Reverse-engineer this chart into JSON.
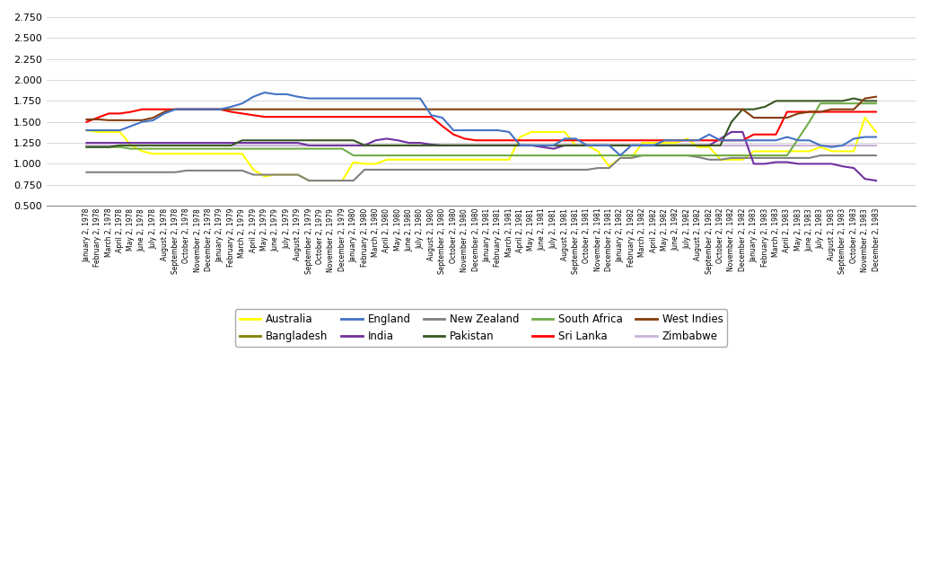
{
  "ylim": [
    0.5,
    2.75
  ],
  "yticks": [
    0.5,
    0.75,
    1.0,
    1.25,
    1.5,
    1.75,
    2.0,
    2.25,
    2.5,
    2.75
  ],
  "colors": {
    "Australia": "#FFFF00",
    "Bangladesh": "#808000",
    "England": "#4472C4",
    "India": "#7030A0",
    "New Zealand": "#808080",
    "Pakistan": "#375623",
    "South Africa": "#70AD47",
    "Sri Lanka": "#FF0000",
    "West Indies": "#843C0C",
    "Zimbabwe": "#C9B3D8"
  },
  "legend_order": [
    "Australia",
    "Bangladesh",
    "England",
    "India",
    "New Zealand",
    "Pakistan",
    "South Africa",
    "Sri Lanka",
    "West Indies",
    "Zimbabwe"
  ],
  "x_labels": [
    "January 2, 1978",
    "February 2, 1978",
    "March 2, 1978",
    "April 2, 1978",
    "May 2, 1978",
    "June 2, 1978",
    "July 2, 1978",
    "August 2, 1978",
    "September 2, 1978",
    "October 2, 1978",
    "November 2, 1978",
    "December 2, 1978",
    "January 2, 1979",
    "February 2, 1979",
    "March 2, 1979",
    "April 2, 1979",
    "May 2, 1979",
    "June 2, 1979",
    "July 2, 1979",
    "August 2, 1979",
    "September 2, 1979",
    "October 2, 1979",
    "November 2, 1979",
    "December 2, 1979",
    "January 2, 1980",
    "February 2, 1980",
    "March 2, 1980",
    "April 2, 1980",
    "May 2, 1980",
    "June 2, 1980",
    "July 2, 1980",
    "August 2, 1980",
    "September 2, 1980",
    "October 2, 1980",
    "November 2, 1980",
    "December 2, 1980",
    "January 2, 1981",
    "February 2, 1981",
    "March 2, 1981",
    "April 2, 1981",
    "May 2, 1981",
    "June 2, 1981",
    "July 2, 1981",
    "August 2, 1981",
    "September 2, 1981",
    "October 2, 1981",
    "November 2, 1981",
    "December 2, 1981",
    "January 2, 1982",
    "February 2, 1982",
    "March 2, 1982",
    "April 2, 1982",
    "May 2, 1982",
    "June 2, 1982",
    "July 2, 1982",
    "August 2, 1982",
    "September 2, 1982",
    "October 2, 1982",
    "November 2, 1982",
    "December 2, 1982",
    "January 2, 1983",
    "February 2, 1983",
    "March 2, 1983",
    "April 2, 1983",
    "May 2, 1983",
    "June 2, 1983",
    "July 2, 1983",
    "August 2, 1983",
    "September 2, 1983",
    "October 2, 1983",
    "November 2, 1983",
    "December 2, 1983"
  ],
  "series": {
    "Australia": [
      1.4,
      1.38,
      1.38,
      1.38,
      1.22,
      1.15,
      1.12,
      1.12,
      1.12,
      1.12,
      1.12,
      1.12,
      1.12,
      1.12,
      1.12,
      0.93,
      0.85,
      0.87,
      0.87,
      0.87,
      0.8,
      0.8,
      0.8,
      0.8,
      1.02,
      1.0,
      1.0,
      1.05,
      1.05,
      1.05,
      1.05,
      1.05,
      1.05,
      1.05,
      1.05,
      1.05,
      1.05,
      1.05,
      1.05,
      1.32,
      1.38,
      1.38,
      1.38,
      1.38,
      1.22,
      1.22,
      1.15,
      0.97,
      1.07,
      1.07,
      1.25,
      1.25,
      1.25,
      1.25,
      1.3,
      1.2,
      1.2,
      1.05,
      1.05,
      1.05,
      1.15,
      1.15,
      1.15,
      1.15,
      1.15,
      1.15,
      1.2,
      1.15,
      1.15,
      1.15,
      1.55,
      1.38
    ],
    "Bangladesh": [
      1.22,
      1.22,
      1.22,
      1.22,
      1.22,
      1.22,
      1.22,
      1.22,
      1.22,
      1.22,
      1.22,
      1.22,
      1.22,
      1.22,
      1.22,
      1.22,
      1.22,
      1.22,
      1.22,
      1.22,
      1.22,
      1.22,
      1.22,
      1.22,
      1.22,
      1.22,
      1.22,
      1.22,
      1.22,
      1.22,
      1.22,
      1.22,
      1.22,
      1.22,
      1.22,
      1.22,
      1.22,
      1.22,
      1.22,
      1.22,
      1.22,
      1.22,
      1.22,
      1.22,
      1.22,
      1.22,
      1.22,
      1.22,
      1.22,
      1.22,
      1.22,
      1.22,
      1.22,
      1.22,
      1.22,
      1.22,
      1.22,
      1.22,
      1.22,
      1.22,
      1.22,
      1.22,
      1.22,
      1.22,
      1.22,
      1.22,
      1.22,
      1.22,
      1.22,
      1.22,
      1.22,
      1.22
    ],
    "England": [
      1.4,
      1.4,
      1.4,
      1.4,
      1.45,
      1.5,
      1.52,
      1.6,
      1.65,
      1.65,
      1.65,
      1.65,
      1.65,
      1.68,
      1.72,
      1.8,
      1.85,
      1.83,
      1.83,
      1.8,
      1.78,
      1.78,
      1.78,
      1.78,
      1.78,
      1.78,
      1.78,
      1.78,
      1.78,
      1.78,
      1.78,
      1.58,
      1.55,
      1.4,
      1.4,
      1.4,
      1.4,
      1.4,
      1.38,
      1.22,
      1.22,
      1.22,
      1.22,
      1.3,
      1.3,
      1.22,
      1.22,
      1.22,
      1.1,
      1.22,
      1.22,
      1.22,
      1.28,
      1.28,
      1.28,
      1.28,
      1.35,
      1.28,
      1.28,
      1.28,
      1.28,
      1.28,
      1.28,
      1.32,
      1.28,
      1.28,
      1.22,
      1.2,
      1.22,
      1.3,
      1.32,
      1.32
    ],
    "India": [
      1.25,
      1.25,
      1.25,
      1.25,
      1.25,
      1.25,
      1.25,
      1.25,
      1.25,
      1.25,
      1.25,
      1.25,
      1.25,
      1.25,
      1.25,
      1.25,
      1.25,
      1.25,
      1.25,
      1.25,
      1.22,
      1.22,
      1.22,
      1.22,
      1.22,
      1.22,
      1.28,
      1.3,
      1.28,
      1.25,
      1.25,
      1.23,
      1.22,
      1.22,
      1.22,
      1.22,
      1.22,
      1.22,
      1.22,
      1.22,
      1.22,
      1.2,
      1.18,
      1.22,
      1.22,
      1.22,
      1.22,
      1.22,
      1.22,
      1.22,
      1.22,
      1.22,
      1.22,
      1.22,
      1.22,
      1.22,
      1.22,
      1.3,
      1.38,
      1.38,
      1.0,
      1.0,
      1.02,
      1.02,
      1.0,
      1.0,
      1.0,
      1.0,
      0.97,
      0.95,
      0.82,
      0.8
    ],
    "New Zealand": [
      0.9,
      0.9,
      0.9,
      0.9,
      0.9,
      0.9,
      0.9,
      0.9,
      0.9,
      0.92,
      0.92,
      0.92,
      0.92,
      0.92,
      0.92,
      0.87,
      0.87,
      0.87,
      0.87,
      0.87,
      0.8,
      0.8,
      0.8,
      0.8,
      0.8,
      0.93,
      0.93,
      0.93,
      0.93,
      0.93,
      0.93,
      0.93,
      0.93,
      0.93,
      0.93,
      0.93,
      0.93,
      0.93,
      0.93,
      0.93,
      0.93,
      0.93,
      0.93,
      0.93,
      0.93,
      0.93,
      0.95,
      0.95,
      1.07,
      1.07,
      1.1,
      1.1,
      1.1,
      1.1,
      1.1,
      1.08,
      1.05,
      1.05,
      1.07,
      1.07,
      1.07,
      1.07,
      1.07,
      1.07,
      1.07,
      1.07,
      1.1,
      1.1,
      1.1,
      1.1,
      1.1,
      1.1
    ],
    "Pakistan": [
      1.2,
      1.2,
      1.2,
      1.22,
      1.22,
      1.22,
      1.22,
      1.22,
      1.22,
      1.22,
      1.22,
      1.22,
      1.22,
      1.22,
      1.28,
      1.28,
      1.28,
      1.28,
      1.28,
      1.28,
      1.28,
      1.28,
      1.28,
      1.28,
      1.28,
      1.22,
      1.22,
      1.22,
      1.22,
      1.22,
      1.22,
      1.22,
      1.22,
      1.22,
      1.22,
      1.22,
      1.22,
      1.22,
      1.22,
      1.22,
      1.22,
      1.22,
      1.22,
      1.22,
      1.22,
      1.22,
      1.22,
      1.22,
      1.22,
      1.22,
      1.22,
      1.22,
      1.22,
      1.22,
      1.22,
      1.22,
      1.22,
      1.22,
      1.5,
      1.65,
      1.65,
      1.68,
      1.75,
      1.75,
      1.75,
      1.75,
      1.75,
      1.75,
      1.75,
      1.78,
      1.75,
      1.75
    ],
    "South Africa": [
      1.2,
      1.2,
      1.2,
      1.2,
      1.18,
      1.18,
      1.18,
      1.18,
      1.18,
      1.18,
      1.18,
      1.18,
      1.18,
      1.18,
      1.18,
      1.18,
      1.18,
      1.18,
      1.18,
      1.18,
      1.18,
      1.18,
      1.18,
      1.18,
      1.1,
      1.1,
      1.1,
      1.1,
      1.1,
      1.1,
      1.1,
      1.1,
      1.1,
      1.1,
      1.1,
      1.1,
      1.1,
      1.1,
      1.1,
      1.1,
      1.1,
      1.1,
      1.1,
      1.1,
      1.1,
      1.1,
      1.1,
      1.1,
      1.1,
      1.1,
      1.1,
      1.1,
      1.1,
      1.1,
      1.1,
      1.1,
      1.1,
      1.1,
      1.1,
      1.1,
      1.1,
      1.1,
      1.1,
      1.1,
      1.3,
      1.5,
      1.72,
      1.72,
      1.72,
      1.72,
      1.72,
      1.72
    ],
    "Sri Lanka": [
      1.5,
      1.55,
      1.6,
      1.6,
      1.62,
      1.65,
      1.65,
      1.65,
      1.65,
      1.65,
      1.65,
      1.65,
      1.65,
      1.62,
      1.6,
      1.58,
      1.56,
      1.56,
      1.56,
      1.56,
      1.56,
      1.56,
      1.56,
      1.56,
      1.56,
      1.56,
      1.56,
      1.56,
      1.56,
      1.56,
      1.56,
      1.56,
      1.45,
      1.35,
      1.3,
      1.28,
      1.28,
      1.28,
      1.28,
      1.28,
      1.28,
      1.28,
      1.28,
      1.28,
      1.28,
      1.28,
      1.28,
      1.28,
      1.28,
      1.28,
      1.28,
      1.28,
      1.28,
      1.28,
      1.28,
      1.28,
      1.28,
      1.28,
      1.28,
      1.28,
      1.35,
      1.35,
      1.35,
      1.62,
      1.62,
      1.62,
      1.62,
      1.62,
      1.62,
      1.62,
      1.62,
      1.62
    ],
    "West Indies": [
      1.53,
      1.53,
      1.52,
      1.52,
      1.52,
      1.52,
      1.55,
      1.62,
      1.65,
      1.65,
      1.65,
      1.65,
      1.65,
      1.65,
      1.65,
      1.65,
      1.65,
      1.65,
      1.65,
      1.65,
      1.65,
      1.65,
      1.65,
      1.65,
      1.65,
      1.65,
      1.65,
      1.65,
      1.65,
      1.65,
      1.65,
      1.65,
      1.65,
      1.65,
      1.65,
      1.65,
      1.65,
      1.65,
      1.65,
      1.65,
      1.65,
      1.65,
      1.65,
      1.65,
      1.65,
      1.65,
      1.65,
      1.65,
      1.65,
      1.65,
      1.65,
      1.65,
      1.65,
      1.65,
      1.65,
      1.65,
      1.65,
      1.65,
      1.65,
      1.65,
      1.55,
      1.55,
      1.55,
      1.55,
      1.6,
      1.62,
      1.62,
      1.65,
      1.65,
      1.65,
      1.78,
      1.8
    ],
    "Zimbabwe": [
      1.22,
      1.22,
      1.22,
      1.22,
      1.22,
      1.22,
      1.22,
      1.22,
      1.22,
      1.22,
      1.22,
      1.22,
      1.22,
      1.22,
      1.22,
      1.22,
      1.22,
      1.22,
      1.22,
      1.22,
      1.22,
      1.22,
      1.22,
      1.22,
      1.22,
      1.22,
      1.22,
      1.22,
      1.22,
      1.22,
      1.22,
      1.22,
      1.22,
      1.22,
      1.22,
      1.22,
      1.22,
      1.22,
      1.22,
      1.22,
      1.22,
      1.22,
      1.22,
      1.22,
      1.22,
      1.22,
      1.22,
      1.22,
      1.22,
      1.22,
      1.22,
      1.22,
      1.22,
      1.22,
      1.22,
      1.22,
      1.22,
      1.22,
      1.22,
      1.22,
      1.22,
      1.22,
      1.22,
      1.22,
      1.22,
      1.22,
      1.22,
      1.22,
      1.22,
      1.22,
      1.22,
      1.22
    ]
  }
}
